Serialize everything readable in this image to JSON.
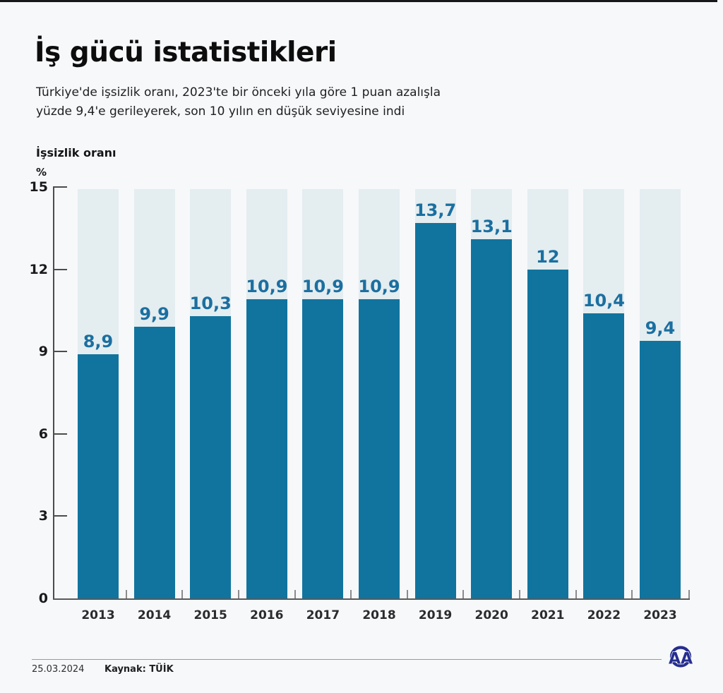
{
  "header": {
    "title": "İş gücü istatistikleri",
    "subtitle_line1": "Türkiye'de işsizlik oranı, 2023'te bir önceki yıla göre 1 puan azalışla",
    "subtitle_line2": "yüzde 9,4'e gerileyerek, son 10 yılın en düşük seviyesine indi"
  },
  "chart_data": {
    "type": "bar",
    "title": "İşsizlik oranı",
    "unit": "%",
    "categories": [
      "2013",
      "2014",
      "2015",
      "2016",
      "2017",
      "2018",
      "2019",
      "2020",
      "2021",
      "2022",
      "2023"
    ],
    "values": [
      8.9,
      9.9,
      10.3,
      10.9,
      10.9,
      10.9,
      13.7,
      13.1,
      12,
      10.4,
      9.4
    ],
    "value_labels": [
      "8,9",
      "9,9",
      "10,3",
      "10,9",
      "10,9",
      "10,9",
      "13,7",
      "13,1",
      "12",
      "10,4",
      "9,4"
    ],
    "ylim": [
      0,
      15
    ],
    "yticks": [
      0,
      3,
      6,
      9,
      12,
      15
    ],
    "grid": false,
    "legend": "none",
    "bar_color": "#11749e",
    "bar_bg_color": "#e4edf0",
    "value_label_color": "#1b6fa0"
  },
  "footer": {
    "date": "25.03.2024",
    "source": "Kaynak: TÜİK",
    "logo_text": "AA",
    "logo_color": "#252e8e"
  }
}
